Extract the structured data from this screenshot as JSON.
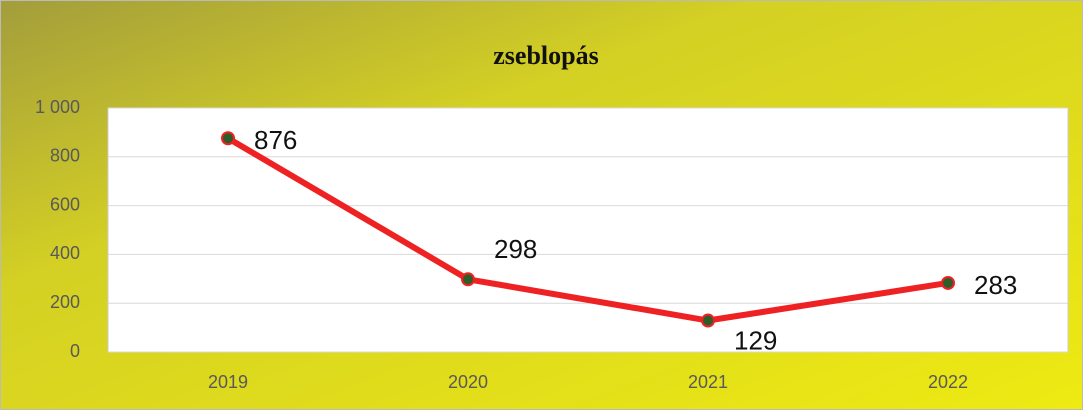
{
  "chart_data": {
    "type": "line",
    "title": "zseblopás",
    "categories": [
      "2019",
      "2020",
      "2021",
      "2022"
    ],
    "series": [
      {
        "name": "zseblopás",
        "color": "#ee2222",
        "values": [
          876,
          298,
          129,
          283
        ]
      }
    ],
    "ylim": [
      0,
      1000
    ],
    "yticks": [
      0,
      200,
      400,
      600,
      800,
      {
        "value": 1000,
        "label": "1 000"
      }
    ],
    "grid": true
  }
}
